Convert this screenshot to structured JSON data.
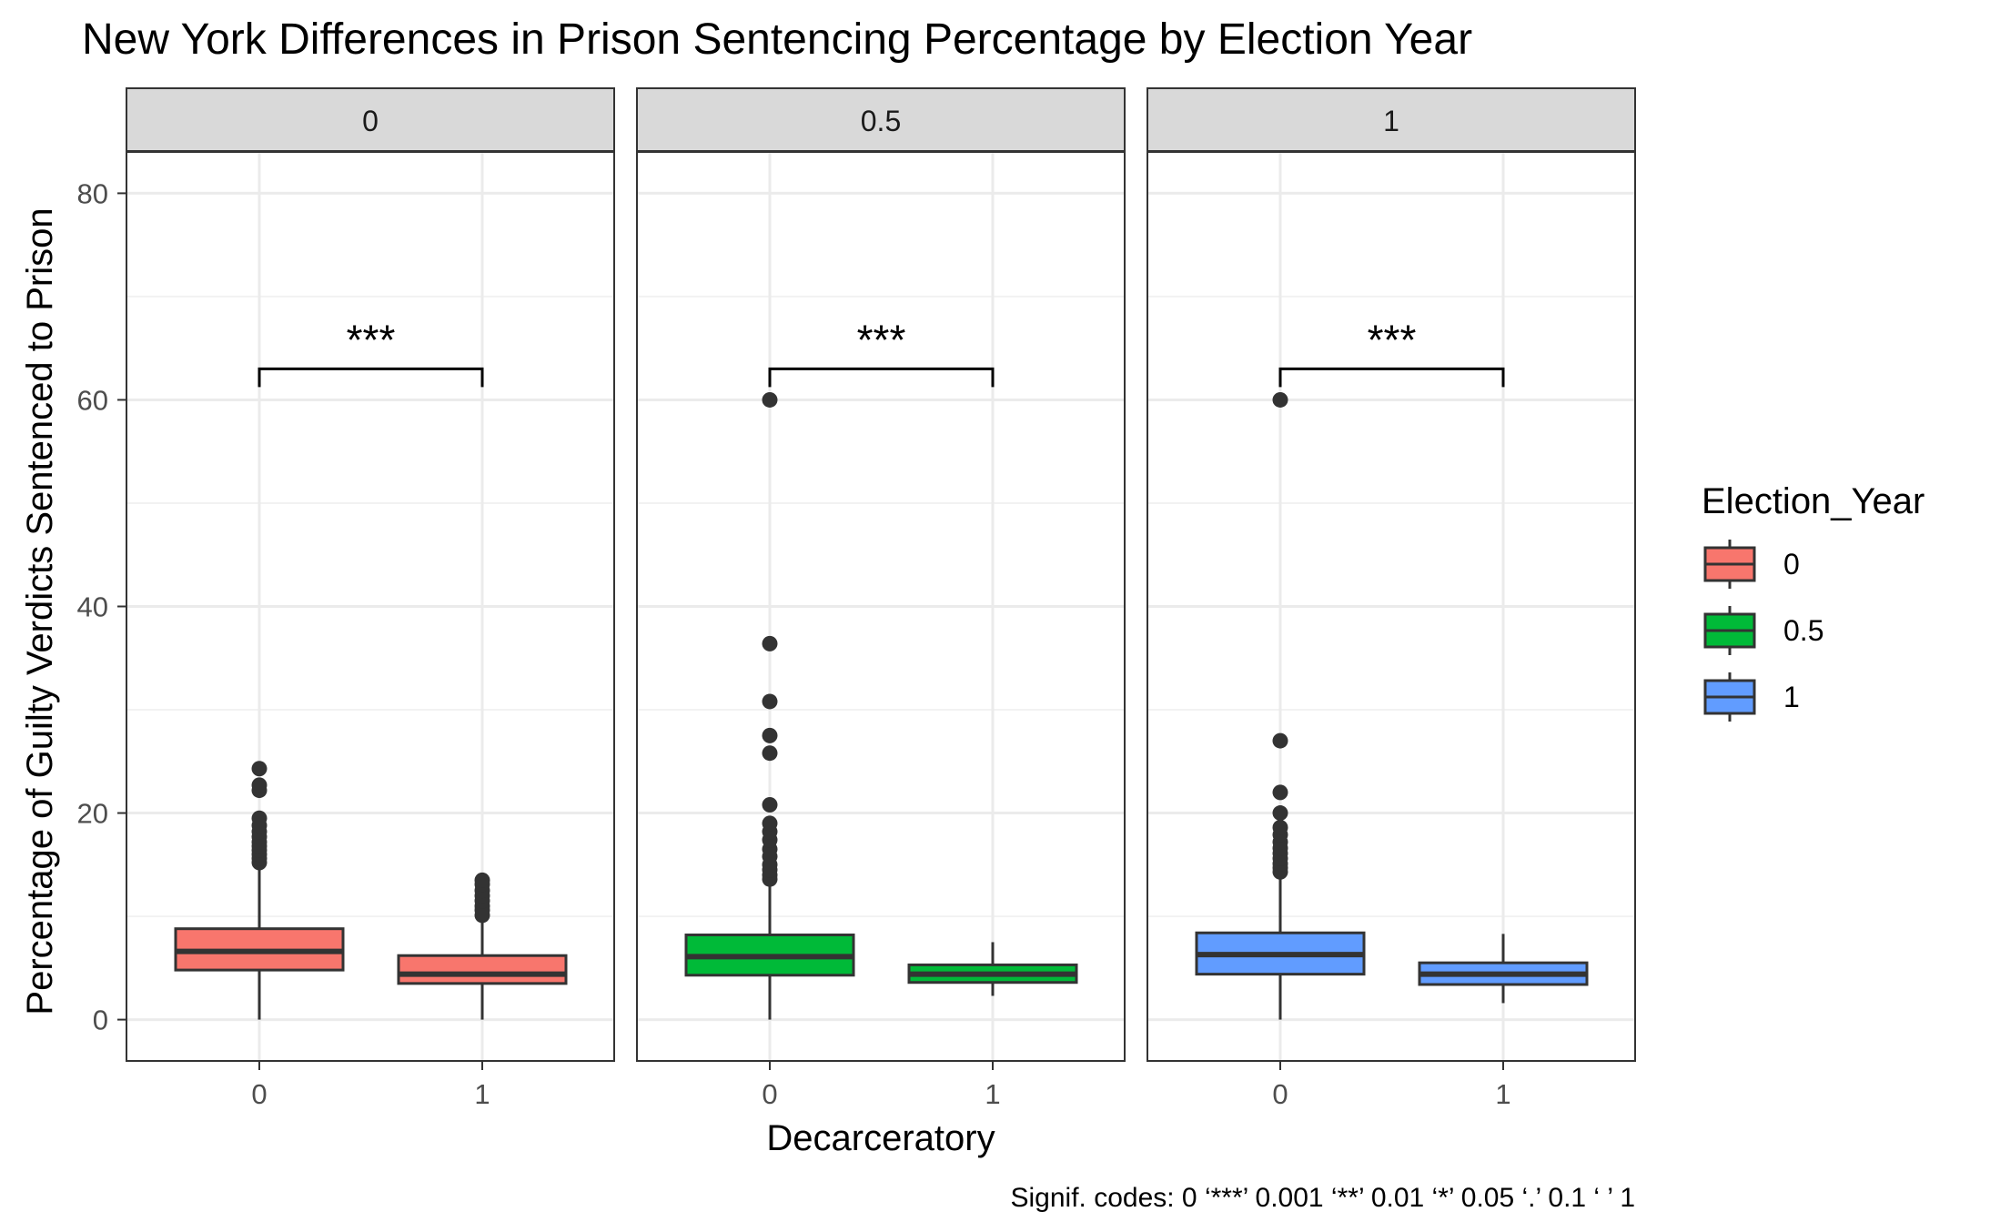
{
  "chart_data": {
    "type": "boxplot",
    "title": "New York Differences in Prison Sentencing Percentage by Election Year",
    "xlabel": "Decarceratory",
    "ylabel": "Percentage of Guilty Verdicts Sentenced to Prison",
    "ylim": [
      -4,
      84
    ],
    "yticks": [
      "0",
      "20",
      "40",
      "60",
      "80"
    ],
    "ytick_values": [
      0,
      20,
      40,
      60,
      80
    ],
    "categories": [
      "0",
      "1"
    ],
    "grid": true,
    "legend": {
      "title": "Election_Year",
      "position": "right",
      "entries": [
        {
          "label": "0",
          "color": "#F8766D"
        },
        {
          "label": "0.5",
          "color": "#00BA38"
        },
        {
          "label": "1",
          "color": "#619CFF"
        }
      ]
    },
    "facets": [
      {
        "label": "0",
        "color": "#F8766D",
        "significance": "***",
        "boxes": [
          {
            "x": "0",
            "min": 0,
            "q1": 4.8,
            "median": 6.6,
            "q3": 8.8,
            "max": 14.8,
            "outliers": [
              15.2,
              15.6,
              16.0,
              16.4,
              16.8,
              17.2,
              17.7,
              18.2,
              18.8,
              19.5,
              22.2,
              22.7,
              24.3
            ]
          },
          {
            "x": "1",
            "min": 0,
            "q1": 3.5,
            "median": 4.4,
            "q3": 6.2,
            "max": 9.8,
            "outliers": [
              10.1,
              10.6,
              11.0,
              11.5,
              12.0,
              12.5,
              13.1,
              13.5
            ]
          }
        ]
      },
      {
        "label": "0.5",
        "color": "#00BA38",
        "significance": "***",
        "boxes": [
          {
            "x": "0",
            "min": 0,
            "q1": 4.3,
            "median": 6.1,
            "q3": 8.2,
            "max": 13.2,
            "outliers": [
              13.6,
              14.0,
              14.5,
              15.0,
              15.8,
              16.5,
              17.4,
              18.2,
              19.0,
              20.8,
              25.8,
              27.5,
              30.8,
              36.4,
              60.0
            ]
          },
          {
            "x": "1",
            "min": 2.3,
            "q1": 3.6,
            "median": 4.4,
            "q3": 5.3,
            "max": 7.5,
            "outliers": []
          }
        ]
      },
      {
        "label": "1",
        "color": "#619CFF",
        "significance": "***",
        "boxes": [
          {
            "x": "0",
            "min": 0,
            "q1": 4.4,
            "median": 6.3,
            "q3": 8.4,
            "max": 13.9,
            "outliers": [
              14.3,
              14.7,
              15.1,
              15.6,
              16.1,
              16.6,
              17.2,
              17.9,
              18.6,
              20.0,
              22.0,
              27.0,
              60.0
            ]
          },
          {
            "x": "1",
            "min": 1.6,
            "q1": 3.4,
            "median": 4.4,
            "q3": 5.5,
            "max": 8.3,
            "outliers": []
          }
        ]
      }
    ],
    "bracket_y": 63,
    "footnote": "Signif. codes:  0 ‘***’ 0.001 ‘**’ 0.01 ‘*’ 0.05 ‘.’ 0.1 ‘ ’ 1"
  }
}
